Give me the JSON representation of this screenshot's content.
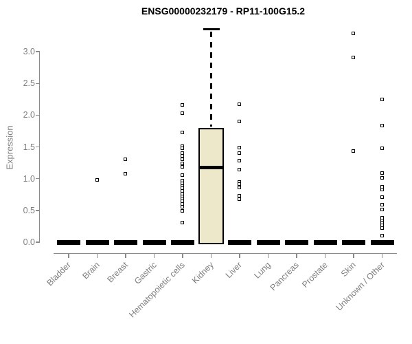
{
  "chart_data": {
    "type": "boxplot",
    "title": "ENSG00000232179 - RP11-100G15.2",
    "ylabel": "Expression",
    "xlabel": "",
    "ylim": [
      0,
      3.35
    ],
    "yticks": [
      0.0,
      0.5,
      1.0,
      1.5,
      2.0,
      2.5,
      3.0
    ],
    "ytick_labels": [
      "0.0",
      "0.5",
      "1.0",
      "1.5",
      "2.0",
      "2.5",
      "3.0"
    ],
    "categories": [
      "Bladder",
      "Brain",
      "Breast",
      "Gastric",
      "Hematopoietic cells",
      "Kidney",
      "Liver",
      "Lung",
      "Pancreas",
      "Prostate",
      "Skin",
      "Unknown / Other"
    ],
    "grid": false,
    "legend": "none",
    "marker": "open-square",
    "boxes": [
      {
        "label": "Bladder",
        "q1": 0,
        "median": 0,
        "q3": 0,
        "whisker_low": 0,
        "whisker_high": 0,
        "outliers": []
      },
      {
        "label": "Brain",
        "q1": 0,
        "median": 0,
        "q3": 0,
        "whisker_low": 0,
        "whisker_high": 0,
        "outliers": [
          0.97
        ]
      },
      {
        "label": "Breast",
        "q1": 0,
        "median": 0,
        "q3": 0,
        "whisker_low": 0,
        "whisker_high": 0,
        "outliers": [
          1.07,
          1.3
        ]
      },
      {
        "label": "Gastric",
        "q1": 0,
        "median": 0,
        "q3": 0,
        "whisker_low": 0,
        "whisker_high": 0,
        "outliers": []
      },
      {
        "label": "Hematopoietic cells",
        "q1": 0,
        "median": 0,
        "q3": 0,
        "whisker_low": 0,
        "whisker_high": 0,
        "outliers": [
          2.15,
          2.03,
          1.72,
          1.51,
          1.47,
          1.4,
          1.35,
          1.3,
          1.24,
          1.18,
          1.05,
          0.96,
          0.92,
          0.88,
          0.84,
          0.8,
          0.76,
          0.72,
          0.68,
          0.64,
          0.6,
          0.55,
          0.49,
          0.3
        ]
      },
      {
        "label": "Kidney",
        "q1": 0,
        "median": 1.18,
        "q3": 1.8,
        "whisker_low": 0,
        "whisker_high": 3.35,
        "outliers": []
      },
      {
        "label": "Liver",
        "q1": 0,
        "median": 0,
        "q3": 0,
        "whisker_low": 0,
        "whisker_high": 0,
        "outliers": [
          2.17,
          1.9,
          1.48,
          1.4,
          1.28,
          1.14,
          0.94,
          0.91,
          0.86,
          0.73,
          0.67
        ]
      },
      {
        "label": "Lung",
        "q1": 0,
        "median": 0,
        "q3": 0,
        "whisker_low": 0,
        "whisker_high": 0,
        "outliers": []
      },
      {
        "label": "Pancreas",
        "q1": 0,
        "median": 0,
        "q3": 0,
        "whisker_low": 0,
        "whisker_high": 0,
        "outliers": []
      },
      {
        "label": "Prostate",
        "q1": 0,
        "median": 0,
        "q3": 0,
        "whisker_low": 0,
        "whisker_high": 0,
        "outliers": []
      },
      {
        "label": "Skin",
        "q1": 0,
        "median": 0,
        "q3": 0,
        "whisker_low": 0,
        "whisker_high": 0,
        "outliers": [
          3.28,
          2.9,
          1.43
        ]
      },
      {
        "label": "Unknown / Other",
        "q1": 0,
        "median": 0,
        "q3": 0,
        "whisker_low": 0,
        "whisker_high": 0,
        "outliers": [
          2.24,
          1.83,
          1.47,
          1.08,
          1.01,
          0.87,
          0.82,
          0.7,
          0.59,
          0.51,
          0.38,
          0.34,
          0.3,
          0.26,
          0.22,
          0.1
        ]
      }
    ],
    "colors": {
      "background": "#ffffff",
      "box_fill": "#ede8ca",
      "box_border": "#000000",
      "median": "#000000",
      "outlier": "#000000",
      "axis": "#8a8a8a",
      "tick_label": "#7f7f7f",
      "title": "#000000"
    }
  }
}
